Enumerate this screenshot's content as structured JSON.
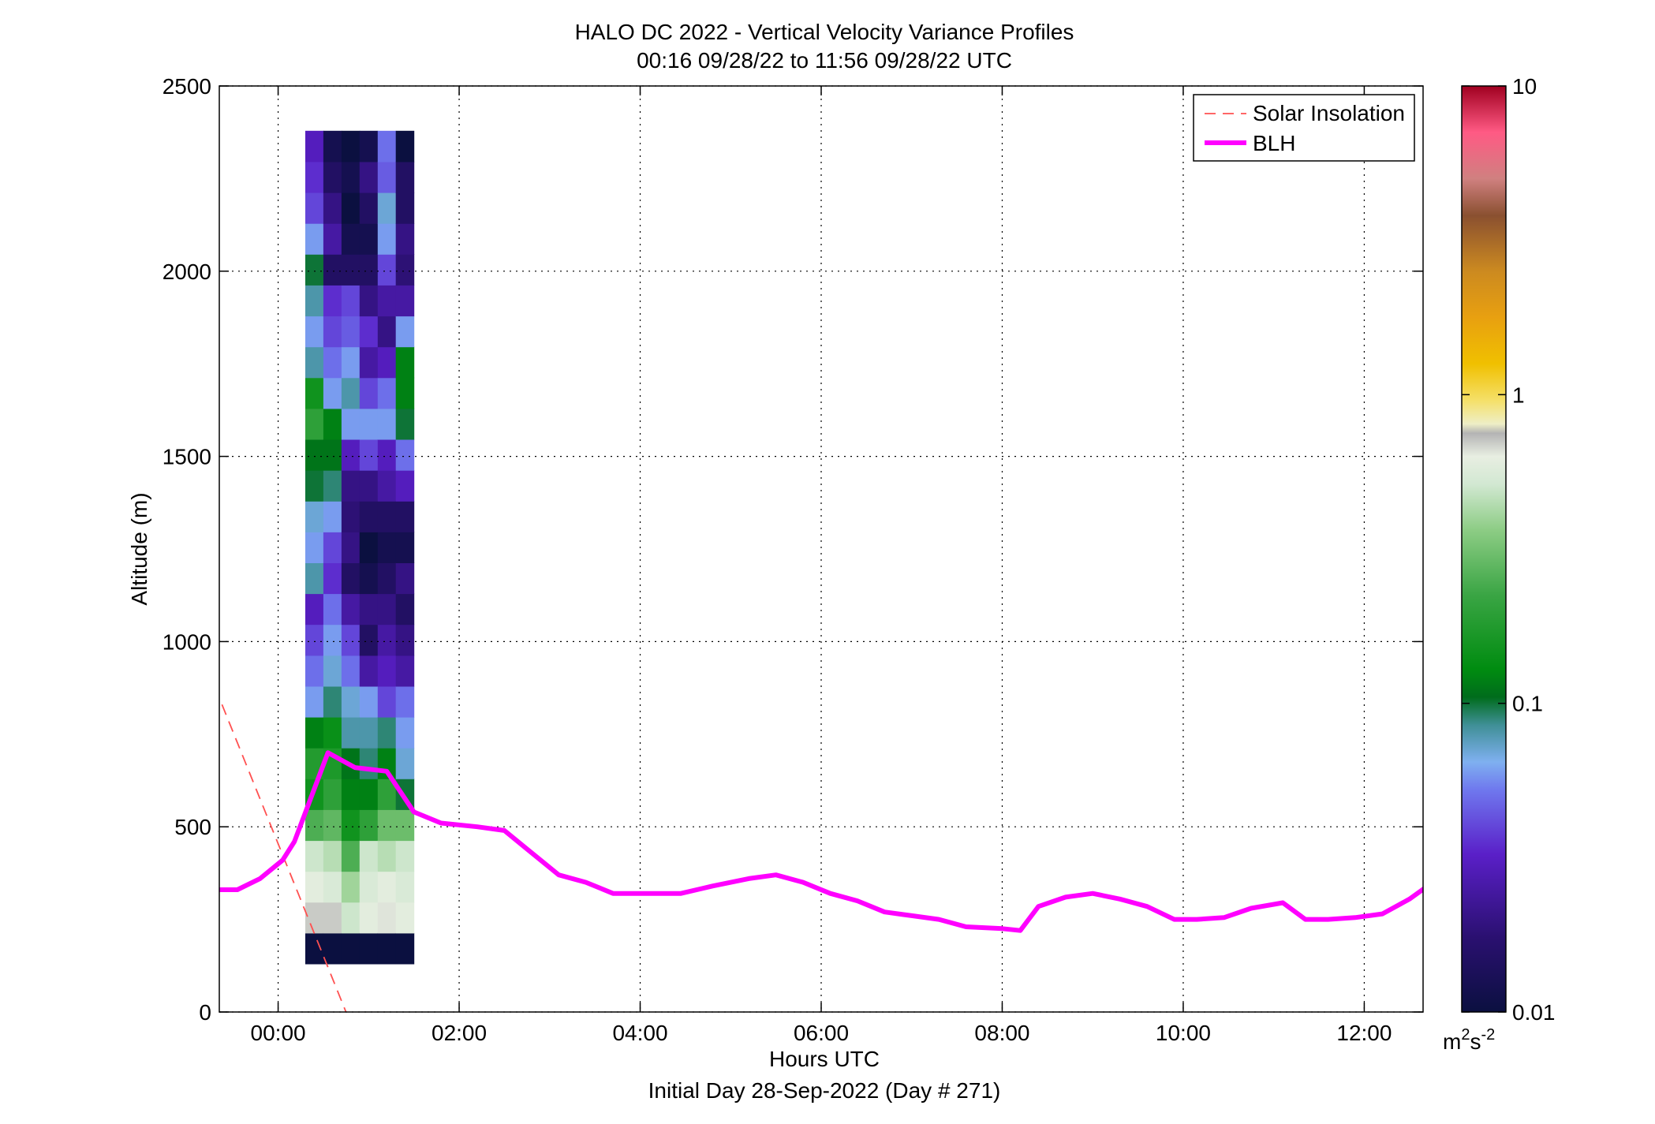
{
  "chart_data": {
    "type": "heatmap",
    "title_line1": "HALO DC 2022 - Vertical Velocity Variance Profiles",
    "title_line2": "00:16 09/28/22 to 11:56 09/28/22  UTC",
    "xlabel": "Hours UTC",
    "subtitle": "Initial Day 28-Sep-2022 (Day # 271)",
    "ylabel": "Altitude (m)",
    "xlim": [
      -0.65,
      12.65
    ],
    "ylim": [
      0,
      2500
    ],
    "x_ticks": [
      0,
      2,
      4,
      6,
      8,
      10,
      12
    ],
    "x_tick_labels": [
      "00:00",
      "02:00",
      "04:00",
      "06:00",
      "08:00",
      "10:00",
      "12:00"
    ],
    "y_ticks": [
      0,
      500,
      1000,
      1500,
      2000,
      2500
    ],
    "y_tick_labels": [
      "0",
      "500",
      "1000",
      "1500",
      "2000",
      "2500"
    ],
    "grid": true,
    "legend_position": "top-right",
    "legend": [
      {
        "name": "Solar Insolation",
        "color": "#ff5050",
        "style": "dashed"
      },
      {
        "name": "BLH",
        "color": "#ff00ff",
        "style": "solid"
      }
    ],
    "colorbar": {
      "scale": "log",
      "min": 0.01,
      "max": 10,
      "tick_values": [
        0.01,
        0.1,
        1,
        10
      ],
      "tick_labels": [
        "0.01",
        "0.1",
        "1",
        "10"
      ],
      "unit": "m",
      "unit_exp1": "2",
      "unit_mid": "s",
      "unit_exp2": "-2"
    },
    "heatmap": {
      "x_start": 0.3,
      "x_step": 0.2,
      "y_start": 130,
      "y_step": 83.3,
      "value_unit": "m^2 s^-2",
      "columns": [
        [
          0.01,
          0.7,
          0.6,
          0.5,
          0.25,
          0.15,
          0.18,
          0.12,
          0.06,
          0.05,
          0.04,
          0.03,
          0.08,
          0.06,
          0.07,
          0.1,
          0.11,
          0.2,
          0.15,
          0.08,
          0.06,
          0.08,
          0.1,
          0.06,
          0.04,
          0.035,
          0.03
        ],
        [
          0.01,
          0.7,
          0.55,
          0.45,
          0.28,
          0.2,
          0.17,
          0.14,
          0.09,
          0.07,
          0.06,
          0.05,
          0.035,
          0.04,
          0.06,
          0.09,
          0.11,
          0.12,
          0.06,
          0.05,
          0.04,
          0.035,
          0.015,
          0.025,
          0.02,
          0.015,
          0.012
        ],
        [
          0.01,
          0.5,
          0.4,
          0.25,
          0.15,
          0.12,
          0.11,
          0.08,
          0.07,
          0.05,
          0.04,
          0.025,
          0.015,
          0.02,
          0.018,
          0.02,
          0.03,
          0.06,
          0.08,
          0.06,
          0.045,
          0.04,
          0.015,
          0.012,
          0.01,
          0.012,
          0.01
        ],
        [
          0.01,
          0.6,
          0.55,
          0.5,
          0.2,
          0.12,
          0.09,
          0.08,
          0.06,
          0.025,
          0.015,
          0.02,
          0.012,
          0.01,
          0.015,
          0.02,
          0.04,
          0.06,
          0.04,
          0.025,
          0.035,
          0.02,
          0.015,
          0.012,
          0.015,
          0.02,
          0.012
        ],
        [
          0.01,
          0.65,
          0.6,
          0.45,
          0.3,
          0.2,
          0.12,
          0.09,
          0.04,
          0.03,
          0.025,
          0.02,
          0.015,
          0.012,
          0.015,
          0.025,
          0.03,
          0.06,
          0.05,
          0.03,
          0.02,
          0.025,
          0.04,
          0.06,
          0.07,
          0.045,
          0.05
        ],
        [
          0.01,
          0.6,
          0.55,
          0.5,
          0.3,
          0.1,
          0.07,
          0.06,
          0.05,
          0.025,
          0.02,
          0.015,
          0.02,
          0.012,
          0.015,
          0.03,
          0.05,
          0.1,
          0.12,
          0.12,
          0.06,
          0.025,
          0.018,
          0.02,
          0.015,
          0.015,
          0.01
        ]
      ]
    },
    "blh": {
      "x": [
        -0.7,
        -0.45,
        -0.2,
        0.05,
        0.18,
        0.55,
        0.85,
        1.2,
        1.5,
        1.8,
        2.2,
        2.5,
        2.75,
        3.1,
        3.4,
        3.7,
        4.0,
        4.45,
        4.8,
        5.2,
        5.5,
        5.8,
        6.1,
        6.4,
        6.7,
        7.0,
        7.3,
        7.6,
        8.0,
        8.2,
        8.4,
        8.7,
        9.0,
        9.3,
        9.6,
        9.9,
        10.15,
        10.45,
        10.75,
        11.1,
        11.35,
        11.6,
        11.9,
        12.2,
        12.5,
        12.7
      ],
      "y": [
        330,
        330,
        360,
        410,
        460,
        700,
        660,
        650,
        540,
        510,
        500,
        490,
        440,
        370,
        350,
        320,
        320,
        320,
        340,
        360,
        370,
        350,
        320,
        300,
        270,
        260,
        250,
        230,
        225,
        220,
        285,
        310,
        320,
        305,
        285,
        250,
        250,
        255,
        280,
        295,
        250,
        250,
        255,
        265,
        305,
        340
      ]
    },
    "solar_insolation": {
      "x": [
        -0.62,
        0.75
      ],
      "y": [
        830,
        0
      ]
    }
  }
}
